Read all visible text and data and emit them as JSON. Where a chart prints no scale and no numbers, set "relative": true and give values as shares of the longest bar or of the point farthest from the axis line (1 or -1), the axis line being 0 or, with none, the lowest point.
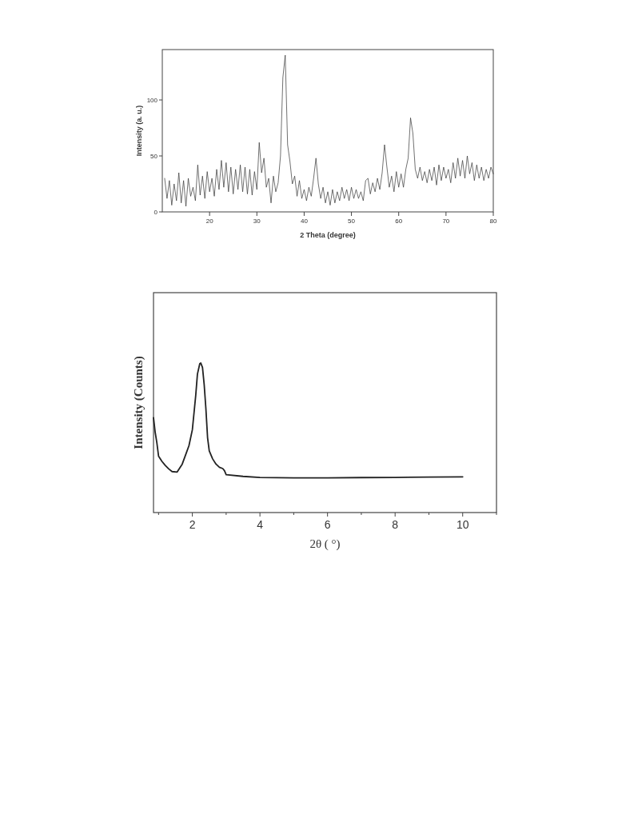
{
  "chart_data": [
    {
      "type": "line",
      "xlabel": "2 Theta (degree)",
      "ylabel": "Intensity (a. u.)",
      "color": "#333333",
      "xlim": [
        10,
        80
      ],
      "ylim": [
        0,
        145
      ],
      "xticks": [
        20,
        30,
        40,
        50,
        60,
        70,
        80
      ],
      "yticks": [
        0,
        50,
        100
      ],
      "x": [
        10.5,
        11,
        11.5,
        12,
        12.5,
        13,
        13.5,
        14,
        14.5,
        15,
        15.5,
        16,
        16.5,
        17,
        17.5,
        18,
        18.5,
        19,
        19.5,
        20,
        20.5,
        21,
        21.5,
        22,
        22.5,
        23,
        23.5,
        24,
        24.5,
        25,
        25.5,
        26,
        26.5,
        27,
        27.5,
        28,
        28.5,
        29,
        29.5,
        30,
        30.5,
        31,
        31.5,
        32,
        32.5,
        33,
        33.5,
        34,
        34.5,
        35,
        35.5,
        36,
        36.5,
        37,
        37.5,
        38,
        38.5,
        39,
        39.5,
        40,
        40.5,
        41,
        41.5,
        42,
        42.5,
        43,
        43.5,
        44,
        44.5,
        45,
        45.5,
        46,
        46.5,
        47,
        47.5,
        48,
        48.5,
        49,
        49.5,
        50,
        50.5,
        51,
        51.5,
        52,
        52.5,
        53,
        53.5,
        54,
        54.5,
        55,
        55.5,
        56,
        56.5,
        57,
        57.5,
        58,
        58.5,
        59,
        59.5,
        60,
        60.5,
        61,
        61.5,
        62,
        62.5,
        63,
        63.5,
        64,
        64.5,
        65,
        65.5,
        66,
        66.5,
        67,
        67.5,
        68,
        68.5,
        69,
        69.5,
        70,
        70.5,
        71,
        71.5,
        72,
        72.5,
        73,
        73.5,
        74,
        74.5,
        75,
        75.5,
        76,
        76.5,
        77,
        77.5,
        78,
        78.5,
        79,
        79.5,
        80
      ],
      "values": [
        30,
        12,
        28,
        6,
        25,
        10,
        35,
        8,
        28,
        5,
        30,
        14,
        22,
        10,
        42,
        15,
        32,
        12,
        36,
        18,
        30,
        14,
        38,
        20,
        46,
        22,
        44,
        18,
        40,
        16,
        38,
        20,
        42,
        18,
        40,
        16,
        38,
        15,
        36,
        20,
        62,
        35,
        48,
        22,
        30,
        8,
        32,
        18,
        26,
        50,
        120,
        140,
        60,
        45,
        25,
        32,
        14,
        28,
        12,
        20,
        10,
        22,
        14,
        30,
        48,
        25,
        12,
        22,
        8,
        18,
        6,
        20,
        8,
        18,
        10,
        22,
        12,
        20,
        10,
        22,
        12,
        20,
        12,
        18,
        10,
        28,
        30,
        16,
        26,
        18,
        30,
        20,
        35,
        60,
        40,
        22,
        32,
        18,
        36,
        22,
        34,
        22,
        38,
        48,
        84,
        70,
        38,
        30,
        40,
        28,
        36,
        26,
        38,
        28,
        40,
        24,
        42,
        28,
        40,
        30,
        38,
        26,
        44,
        30,
        48,
        32,
        46,
        30,
        50,
        34,
        44,
        28,
        42,
        30,
        40,
        28,
        38,
        30,
        40,
        34
      ]
    },
    {
      "type": "line",
      "xlabel": "2θ ( °)",
      "ylabel": "Intensity (Counts)",
      "color": "#222222",
      "relative": true,
      "xlim": [
        0.85,
        11
      ],
      "xticks": [
        {
          "value": 1,
          "label": null
        },
        2,
        {
          "value": 3,
          "label": null
        },
        4,
        {
          "value": 5,
          "label": null
        },
        6,
        {
          "value": 7,
          "label": null
        },
        8,
        {
          "value": 9,
          "label": null
        },
        10,
        {
          "value": 11,
          "label": null
        }
      ],
      "x": [
        0.85,
        0.9,
        0.95,
        1.0,
        1.1,
        1.2,
        1.3,
        1.4,
        1.55,
        1.7,
        1.8,
        1.9,
        2.0,
        2.1,
        2.15,
        2.22,
        2.25,
        2.3,
        2.35,
        2.4,
        2.45,
        2.5,
        2.6,
        2.7,
        2.8,
        2.9,
        2.95,
        3.0,
        3.5,
        4.0,
        5,
        6,
        7,
        8,
        9,
        10
      ],
      "values": [
        0.634,
        0.536,
        0.466,
        0.377,
        0.342,
        0.315,
        0.292,
        0.274,
        0.271,
        0.324,
        0.386,
        0.448,
        0.554,
        0.784,
        0.926,
        0.996,
        1,
        0.97,
        0.855,
        0.696,
        0.501,
        0.412,
        0.359,
        0.324,
        0.303,
        0.294,
        0.28,
        0.253,
        0.242,
        0.235,
        0.232,
        0.232,
        0.234,
        0.235,
        0.237,
        0.239
      ]
    }
  ]
}
